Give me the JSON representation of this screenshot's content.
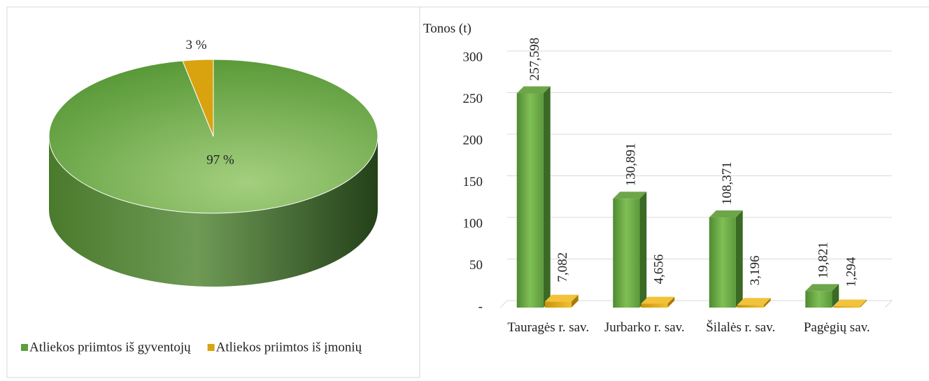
{
  "chart_data": [
    {
      "type": "pie",
      "categories": [
        "Atliekos priimtos iš gyventojų",
        "Atliekos priimtos iš įmonių"
      ],
      "values": [
        97,
        3
      ],
      "value_labels": [
        "97 %",
        "3 %"
      ],
      "colors": [
        "#5f9e3f",
        "#d9a310"
      ],
      "legend": "bottom"
    },
    {
      "type": "bar",
      "ylabel": "Tonos (t)",
      "categories": [
        "Tauragės r. sav.",
        "Jurbarko r. sav.",
        "Šilalės r. sav.",
        "Pagėgių sav."
      ],
      "series": [
        {
          "color": "#5f9e3f",
          "values": [
            257.598,
            130.891,
            108.371,
            19.821
          ],
          "value_labels": [
            "257,598",
            "130,891",
            "108,371",
            "19,821"
          ]
        },
        {
          "color": "#d9a310",
          "values": [
            7.082,
            4.656,
            3.196,
            1.294
          ],
          "value_labels": [
            "7,082",
            "4,656",
            "3,196",
            "1,294"
          ]
        }
      ],
      "ylim": [
        0,
        300
      ],
      "yticks": [
        {
          "value": 0,
          "label": "-"
        },
        50,
        100,
        150,
        200,
        250,
        300
      ],
      "grid": true
    }
  ]
}
